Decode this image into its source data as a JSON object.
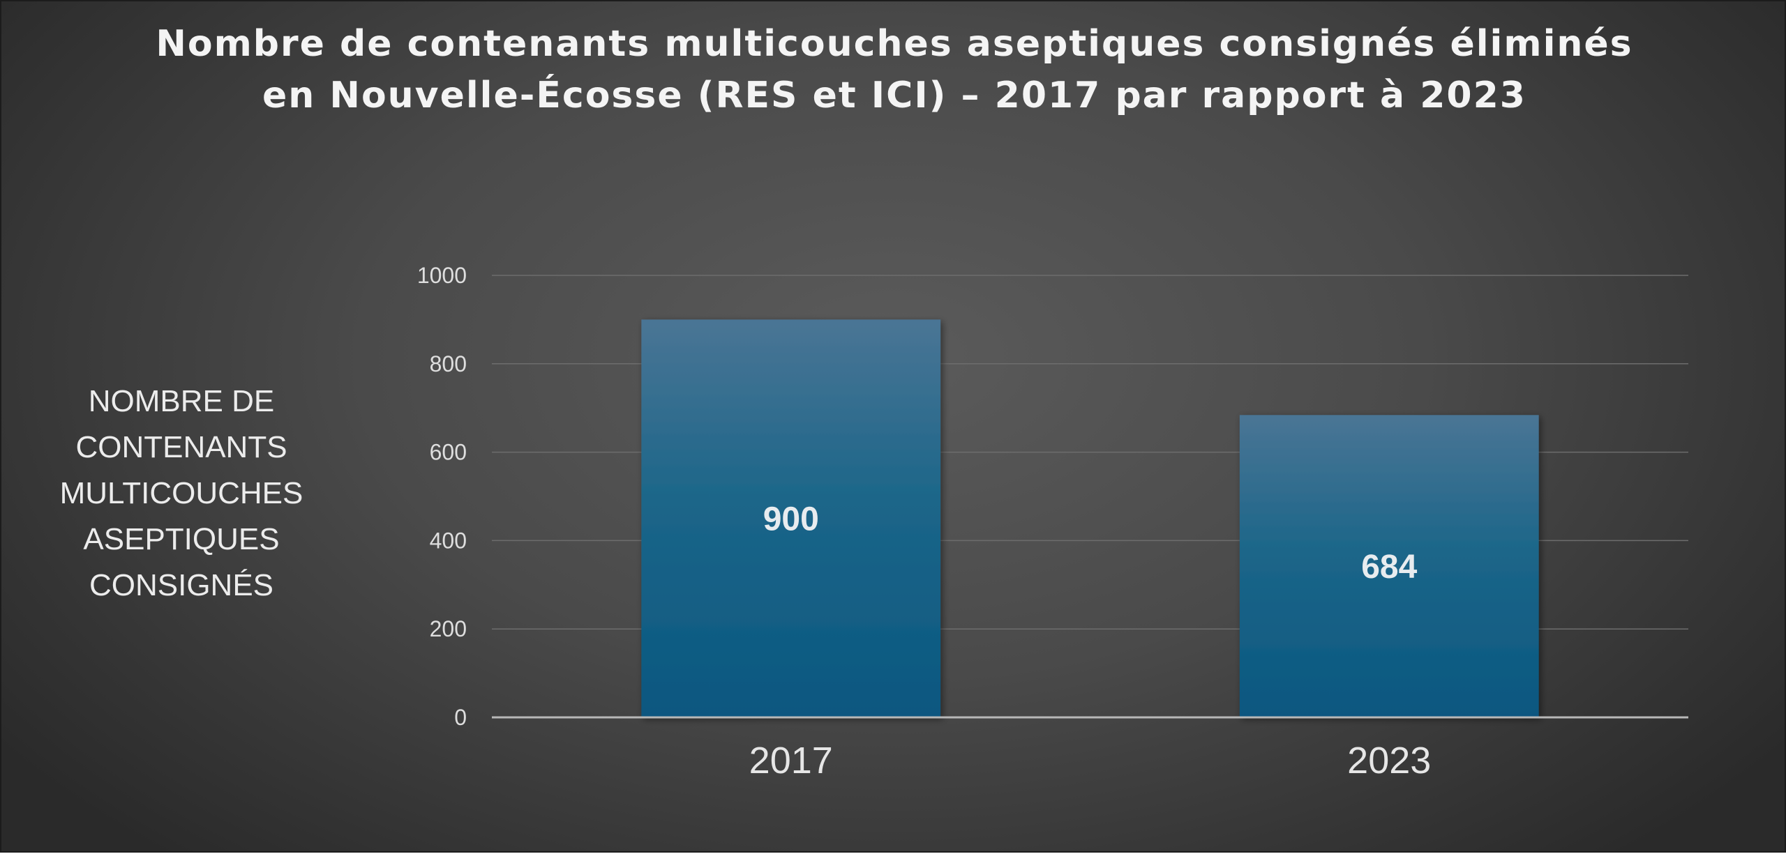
{
  "chart_data": {
    "type": "bar",
    "title_lines": [
      "Nombre de contenants multicouches aseptiques  consignés éliminés",
      "en Nouvelle-Écosse (RES et ICI) – 2017 par rapport à 2023"
    ],
    "ylabel_lines": [
      "NOMBRE DE",
      "CONTENANTS",
      "MULTICOUCHES",
      "ASEPTIQUES",
      "CONSIGNÉS"
    ],
    "xlabel": "",
    "categories": [
      "2017",
      "2023"
    ],
    "values": [
      900,
      684
    ],
    "data_labels": [
      "900",
      "684"
    ],
    "ylim": [
      0,
      1000
    ],
    "yticks": [
      0,
      200,
      400,
      600,
      800,
      1000
    ],
    "ytick_labels": [
      "0",
      "200",
      "400",
      "600",
      "800",
      "1000"
    ],
    "grid": true,
    "legend": "none",
    "colors": {
      "bar_top": "#4a7595",
      "bar_bottom": "#0a5780",
      "background_center": "#5b5b5b",
      "background_edge": "#2a2a2a"
    }
  }
}
